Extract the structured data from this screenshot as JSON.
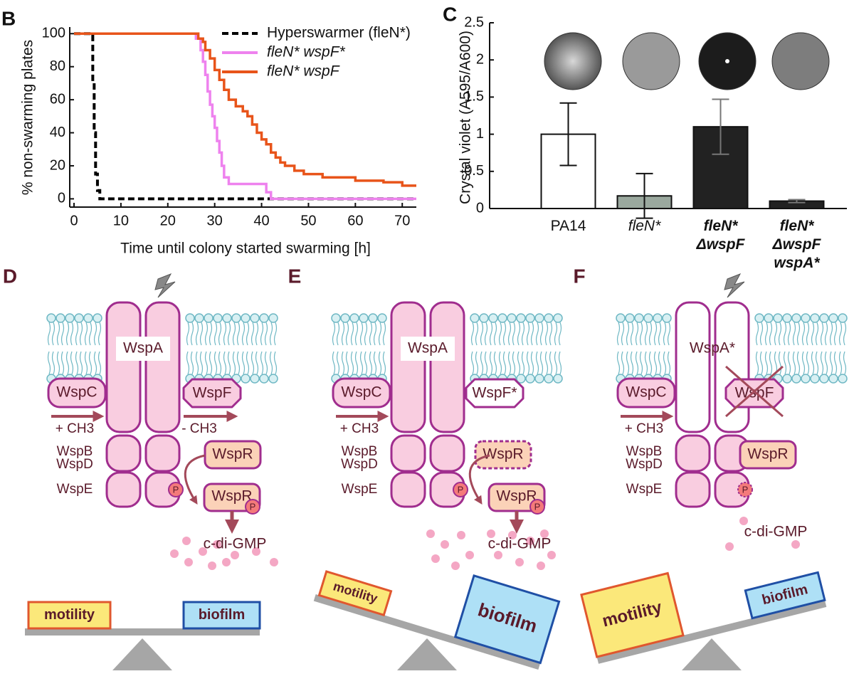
{
  "chart_data": [
    {
      "type": "line",
      "panel": "B",
      "xlabel": "Time until colony started swarming [h]",
      "ylabel": "% non-swarming plates",
      "xlim": [
        0,
        73
      ],
      "ylim": [
        -5,
        104
      ],
      "xticks": [
        0,
        10,
        20,
        30,
        40,
        50,
        60,
        70
      ],
      "yticks": [
        0,
        20,
        40,
        60,
        80,
        100
      ],
      "series": [
        {
          "name": "Hyperswarmer (fleN*)",
          "color": "#000000",
          "dashed": true,
          "x": [
            0,
            4,
            4,
            4.3,
            4.3,
            4.6,
            4.6,
            5,
            5,
            5.5,
            5.5,
            73
          ],
          "values": [
            100,
            100,
            70,
            70,
            40,
            40,
            15,
            15,
            5,
            5,
            0,
            0
          ]
        },
        {
          "name": "fleN* wspF*",
          "color": "#ee82ee",
          "dashed": false,
          "x": [
            0,
            26,
            26,
            27,
            27,
            27.5,
            27.5,
            28,
            28,
            28.5,
            28.5,
            29,
            29,
            29.5,
            29.5,
            30,
            30,
            30.5,
            30.5,
            31,
            31,
            31.5,
            31.5,
            32,
            32,
            33,
            33,
            41,
            41,
            42,
            42,
            73
          ],
          "values": [
            100,
            100,
            97,
            97,
            90,
            90,
            83,
            83,
            75,
            75,
            65,
            65,
            57,
            57,
            50,
            50,
            43,
            43,
            35,
            35,
            28,
            28,
            20,
            20,
            13,
            13,
            9,
            9,
            4,
            4,
            0,
            0
          ]
        },
        {
          "name": "fleN*  wspF",
          "color": "#e8541a",
          "dashed": false,
          "x": [
            0,
            26.5,
            26.5,
            27.5,
            27.5,
            28,
            28,
            29,
            29,
            30,
            30,
            31,
            31,
            32,
            32,
            33,
            33,
            34.5,
            34.5,
            36,
            36,
            37,
            37,
            38,
            38,
            39,
            39,
            40,
            40,
            41,
            41,
            42,
            42,
            43,
            43,
            44,
            44,
            45,
            45,
            47,
            47,
            49,
            49,
            53,
            53,
            60,
            60,
            66,
            66,
            70,
            70,
            73
          ],
          "values": [
            100,
            100,
            97,
            97,
            95,
            95,
            90,
            90,
            85,
            85,
            78,
            78,
            72,
            72,
            66,
            66,
            60,
            60,
            56,
            56,
            53,
            53,
            50,
            50,
            45,
            45,
            40,
            40,
            36,
            36,
            33,
            33,
            28,
            28,
            25,
            25,
            22,
            22,
            20,
            20,
            17,
            17,
            15,
            15,
            13,
            13,
            11,
            11,
            10,
            10,
            8,
            8
          ]
        }
      ]
    },
    {
      "type": "bar",
      "panel": "C",
      "ylabel": "Crystal violet (A595/A600)",
      "ylim": [
        0,
        2.5
      ],
      "yticks": [
        0,
        0.5,
        1,
        1.5,
        2,
        2.5
      ],
      "categories": [
        "PA14",
        "fleN*",
        "fleN*\nΔwspF",
        "fleN*\nΔwspF\nwspA*"
      ],
      "values": [
        1.0,
        0.17,
        1.1,
        0.1
      ],
      "errors": [
        0.42,
        0.3,
        0.37,
        0.02
      ],
      "colors": [
        "#ffffff",
        "#9aa89e",
        "#222222",
        "#222222"
      ]
    }
  ],
  "diagrams": [
    {
      "panel": "D",
      "wspa": "WspA",
      "wspc": "WspC",
      "wspf": "WspF",
      "plus": "+ CH3",
      "minus": "- CH3",
      "wspb": "WspB",
      "wspd": "WspD",
      "wspe": "WspE",
      "wspr": "WspR",
      "wspr_p": "WspR",
      "p": "P",
      "p2": "P",
      "cdigmp": "c-di-GMP",
      "motility": "motility",
      "biofilm": "biofilm"
    },
    {
      "panel": "E",
      "wspa": "WspA",
      "wspc": "WspC",
      "wspf": "WspF*",
      "plus": "+ CH3",
      "wspb": "WspB",
      "wspd": "WspD",
      "wspe": "WspE",
      "wspr": "WspR",
      "wspr_p": "WspR",
      "p": "P",
      "p2": "P",
      "cdigmp": "c-di-GMP",
      "motility": "motility",
      "biofilm": "biofilm"
    },
    {
      "panel": "F",
      "wspa": "WspA*",
      "wspc": "WspC",
      "wspf": "WspF",
      "plus": "+ CH3",
      "wspb": "WspB",
      "wspd": "WspD",
      "wspe": "WspE",
      "wspr": "WspR",
      "p": "P",
      "cdigmp": "c-di-GMP",
      "motility": "motility",
      "biofilm": "biofilm"
    }
  ]
}
